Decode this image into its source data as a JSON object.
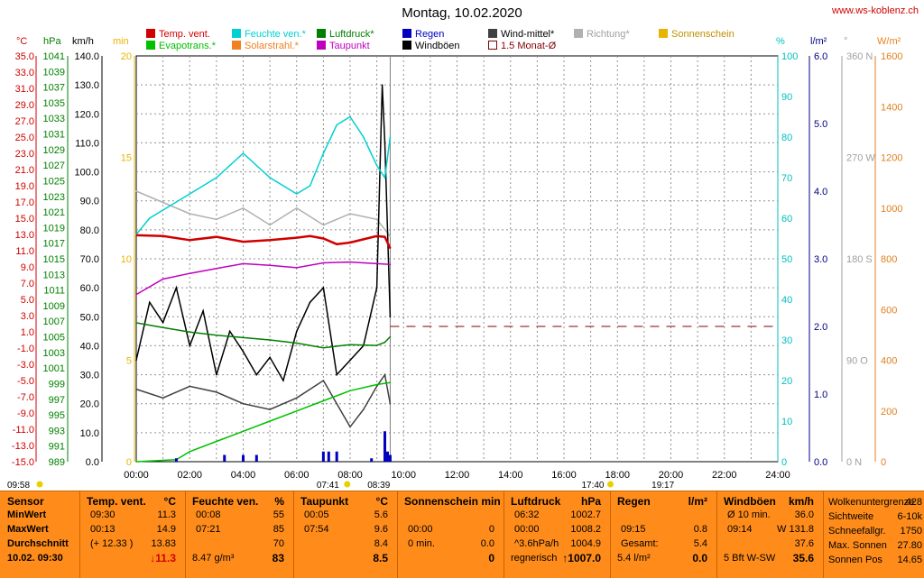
{
  "title": "Montag, 10.02.2020",
  "url": "www.ws-koblenz.ch",
  "legend": [
    {
      "label": "Temp. vent.",
      "color": "#d00000"
    },
    {
      "label": "Feuchte ven.*",
      "color": "#00d0d0"
    },
    {
      "label": "Luftdruck*",
      "color": "#008000"
    },
    {
      "label": "Regen",
      "color": "#0000c0"
    },
    {
      "label": "Wind-mittel*",
      "color": "#404040"
    },
    {
      "label": "Richtung*",
      "color": "#b0b0b0"
    },
    {
      "label": "Sonnenschein",
      "color": "#e8b400"
    },
    {
      "label": "Evapotrans.*",
      "color": "#00c000"
    },
    {
      "label": "Solarstrahl.*",
      "color": "#f08020"
    },
    {
      "label": "Taupunkt",
      "color": "#c000c0"
    },
    {
      "label": "Windböen",
      "color": "#000000"
    },
    {
      "label": "1.5 Monat-Ø",
      "color": "#800000"
    }
  ],
  "units": {
    "temp": "°C",
    "hpa": "hPa",
    "kmh": "km/h",
    "min": "min",
    "pct": "%",
    "lm2": "l/m²",
    "deg": "°",
    "wm2": "W/m²"
  },
  "axes": {
    "temp": [
      "35.0",
      "33.0",
      "31.0",
      "29.0",
      "27.0",
      "25.0",
      "23.0",
      "21.0",
      "19.0",
      "17.0",
      "15.0",
      "13.0",
      "11.0",
      "9.0",
      "7.0",
      "5.0",
      "3.0",
      "1.0",
      "-1.0",
      "-3.0",
      "-5.0",
      "-7.0",
      "-9.0",
      "-11.0",
      "-13.0",
      "-15.0"
    ],
    "hpa": [
      "1041",
      "1039",
      "1037",
      "1035",
      "1033",
      "1031",
      "1029",
      "1027",
      "1025",
      "1023",
      "1021",
      "1019",
      "1017",
      "1015",
      "1013",
      "1011",
      "1009",
      "1007",
      "1005",
      "1003",
      "1001",
      "999",
      "997",
      "995",
      "993",
      "991",
      "989"
    ],
    "kmh": [
      "140.0",
      "130.0",
      "120.0",
      "110.0",
      "100.0",
      "90.0",
      "80.0",
      "70.0",
      "60.0",
      "50.0",
      "40.0",
      "30.0",
      "20.0",
      "10.0",
      "0.0"
    ],
    "min": [
      "20",
      "15",
      "10",
      "5",
      "0"
    ],
    "pct": [
      "100",
      "90",
      "80",
      "70",
      "60",
      "50",
      "40",
      "30",
      "20",
      "10",
      "0"
    ],
    "lm2": [
      "6.0",
      "5.0",
      "4.0",
      "3.0",
      "2.0",
      "1.0",
      "0.0"
    ],
    "deg": [
      "360 N",
      "270 W",
      "180 S",
      "90 O",
      "0 N"
    ],
    "wm2": [
      "1600",
      "1400",
      "1200",
      "1000",
      "800",
      "600",
      "400",
      "200",
      "0"
    ],
    "time": [
      "00:00",
      "02:00",
      "04:00",
      "06:00",
      "08:00",
      "10:00",
      "12:00",
      "14:00",
      "16:00",
      "18:00",
      "20:00",
      "22:00",
      "24:00"
    ]
  },
  "timeline": {
    "left": "09:58",
    "sunrise": "07:41",
    "sunrise_max": "08:39",
    "sunset": "17:40",
    "sunset2": "19:17"
  },
  "chart_data": {
    "type": "line",
    "x_unit": "hour",
    "xlim": [
      0,
      24
    ],
    "series": [
      {
        "name": "Temp. vent.",
        "axis": "°C",
        "ylim": [
          -15,
          35
        ],
        "x": [
          0,
          1,
          2,
          3,
          4,
          5,
          6,
          6.5,
          7,
          7.5,
          8,
          8.5,
          9,
          9.3,
          9.5
        ],
        "values": [
          12.9,
          12.8,
          12.3,
          12.7,
          12.1,
          12.3,
          12.6,
          12.8,
          12.5,
          11.8,
          12.0,
          12.4,
          12.8,
          12.7,
          11.3
        ]
      },
      {
        "name": "Feuchte ven.*",
        "axis": "%",
        "ylim": [
          0,
          100
        ],
        "x": [
          0,
          0.5,
          1,
          2,
          3,
          4,
          5,
          6,
          6.5,
          7,
          7.5,
          8,
          8.5,
          9,
          9.3,
          9.5
        ],
        "values": [
          56,
          60,
          62,
          66,
          70,
          76,
          70,
          66,
          68,
          76,
          83,
          85,
          80,
          73,
          70,
          80
        ]
      },
      {
        "name": "Luftdruck*",
        "axis": "hPa",
        "ylim": [
          989,
          1041
        ],
        "x": [
          0,
          1,
          2,
          3,
          4,
          5,
          6,
          7,
          8,
          9,
          9.3,
          9.5
        ],
        "values": [
          1006.8,
          1006.2,
          1005.6,
          1005.2,
          1004.9,
          1004.6,
          1004.2,
          1003.6,
          1004.0,
          1003.9,
          1004.3,
          1005.0
        ]
      },
      {
        "name": "Taupunkt",
        "axis": "°C",
        "ylim": [
          -15,
          35
        ],
        "x": [
          0,
          1,
          2,
          3,
          4,
          5,
          6,
          7,
          8,
          9,
          9.5
        ],
        "values": [
          5.6,
          7.5,
          8.2,
          8.8,
          9.4,
          9.2,
          8.9,
          9.5,
          9.6,
          9.4,
          9.3
        ]
      },
      {
        "name": "Windböen",
        "axis": "km/h",
        "ylim": [
          0,
          140
        ],
        "x": [
          0,
          0.5,
          1,
          1.5,
          2,
          2.5,
          3,
          3.5,
          4,
          4.5,
          5,
          5.5,
          6,
          6.5,
          7,
          7.5,
          8,
          8.5,
          9,
          9.2,
          9.3,
          9.5
        ],
        "values": [
          35,
          55,
          48,
          60,
          40,
          52,
          30,
          45,
          38,
          30,
          36,
          28,
          45,
          55,
          60,
          30,
          35,
          40,
          60,
          130,
          110,
          50
        ]
      },
      {
        "name": "Wind-mittel*",
        "axis": "km/h",
        "ylim": [
          0,
          140
        ],
        "x": [
          0,
          1,
          2,
          3,
          4,
          5,
          6,
          7,
          7.5,
          8,
          8.5,
          9,
          9.3,
          9.5
        ],
        "values": [
          25,
          22,
          26,
          24,
          20,
          18,
          22,
          28,
          20,
          12,
          18,
          26,
          30,
          20
        ]
      },
      {
        "name": "Richtung*",
        "axis": "°",
        "ylim": [
          0,
          360
        ],
        "x": [
          0,
          1,
          2,
          3,
          4,
          5,
          6,
          7,
          8,
          9,
          9.5
        ],
        "values": [
          240,
          230,
          220,
          215,
          225,
          210,
          225,
          210,
          220,
          215,
          200
        ]
      },
      {
        "name": "Evapotrans.*",
        "axis": "min",
        "ylim": [
          0,
          20
        ],
        "x": [
          0,
          1.5,
          2,
          3,
          4,
          5,
          6,
          7,
          8,
          9,
          9.5
        ],
        "values": [
          0,
          0.1,
          0.5,
          1.0,
          1.5,
          2.0,
          2.5,
          3.0,
          3.5,
          3.8,
          3.9
        ]
      },
      {
        "name": "Regen",
        "axis": "l/m²",
        "ylim": [
          0,
          6
        ],
        "x": [
          1.5,
          3.3,
          4,
          4.5,
          7,
          7.2,
          7.5,
          8.8,
          9.3,
          9.4,
          9.5
        ],
        "values": [
          0.05,
          0.1,
          0.1,
          0.1,
          0.15,
          0.15,
          0.15,
          0.05,
          0.45,
          0.15,
          0.1
        ]
      }
    ],
    "reference_line": {
      "name": "1.5 Monat-Ø",
      "value": 2.0,
      "unit": "l/m²"
    }
  },
  "panel": {
    "sensor": {
      "hdr": "Sensor",
      "rows": [
        "MinWert",
        "MaxWert",
        "Durchschnitt",
        "10.02. 09:30"
      ]
    },
    "temp": {
      "hdr": "Temp. vent.",
      "unit": "°C",
      "r1a": "09:30",
      "r1b": "11.3",
      "r2a": "00:13",
      "r2b": "14.9",
      "r3a": "(+ 12.33 )",
      "r3b": "13.83",
      "cur": "11.3",
      "arrow": "↓"
    },
    "feuchte": {
      "hdr": "Feuchte ven.",
      "unit": "%",
      "r1a": "00:08",
      "r1b": "55",
      "r2a": "07:21",
      "r2b": "85",
      "r3b": "70",
      "r4a": "8.47 g/m³",
      "cur": "83"
    },
    "taupunkt": {
      "hdr": "Taupunkt",
      "unit": "°C",
      "r1a": "00:05",
      "r1b": "5.6",
      "r2a": "07:54",
      "r2b": "9.6",
      "r3b": "8.4",
      "cur": "8.5"
    },
    "sonne": {
      "hdr": "Sonnenschein min",
      "r2a": "00:00",
      "r2b": "0",
      "r3a": "0 min.",
      "r3b": "0.0",
      "cur": "0"
    },
    "luftdruck": {
      "hdr": "Luftdruck",
      "unit": "hPa",
      "r1a": "06:32",
      "r1b": "1002.7",
      "r2a": "00:00",
      "r2b": "1008.2",
      "r3a": "^3.6hPa/h",
      "r3b": "1004.9",
      "r4a": "regnerisch",
      "cur": "1007.0",
      "arrow": "↑"
    },
    "regen": {
      "hdr": "Regen",
      "unit": "l/m²",
      "r2a": "09:15",
      "r2b": "0.8",
      "r3a": "Gesamt:",
      "r3b": "5.4",
      "r4a": "5.4 l/m²",
      "cur": "0.0"
    },
    "wind": {
      "hdr": "Windböen",
      "unit": "km/h",
      "r1a": "Ø 10 min.",
      "r1b": "36.0",
      "r2a": "09:14",
      "r2b": "W 131.8",
      "r3b": "37.6",
      "r4a": "5 Bft W-SW",
      "cur": "35.6"
    },
    "extra": {
      "r1a": "Wolkenuntergrenze",
      "r1b": "428",
      "r2a": "Sichtweite",
      "r2b": "6-10k",
      "r3a": "Schneefallgr.",
      "r3b": "1750",
      "r4a": "Max. Sonnen",
      "r4b": "27.80",
      "r5a": "Sonnen Pos",
      "r5b": "14.65"
    }
  }
}
